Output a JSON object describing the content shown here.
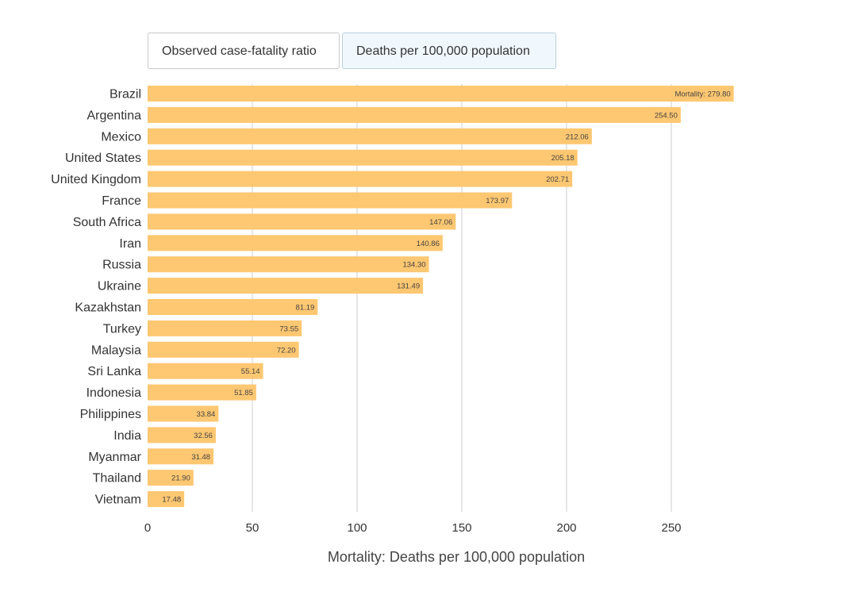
{
  "tabs": [
    {
      "label": "Observed case-fatality ratio",
      "active": false
    },
    {
      "label": "Deaths per 100,000 population",
      "active": true
    }
  ],
  "chart_data": {
    "type": "bar",
    "orientation": "horizontal",
    "categories": [
      "Brazil",
      "Argentina",
      "Mexico",
      "United States",
      "United Kingdom",
      "France",
      "South Africa",
      "Iran",
      "Russia",
      "Ukraine",
      "Kazakhstan",
      "Turkey",
      "Malaysia",
      "Sri Lanka",
      "Indonesia",
      "Philippines",
      "India",
      "Myanmar",
      "Thailand",
      "Vietnam"
    ],
    "values": [
      279.8,
      254.5,
      212.06,
      205.18,
      202.71,
      173.97,
      147.06,
      140.86,
      134.3,
      131.49,
      81.19,
      73.55,
      72.2,
      55.14,
      51.85,
      33.84,
      32.56,
      31.48,
      21.9,
      17.48
    ],
    "data_labels": [
      "Mortality: 279.80",
      "254.50",
      "212.06",
      "205.18",
      "202.71",
      "173.97",
      "147.06",
      "140.86",
      "134.30",
      "131.49",
      "81.19",
      "73.55",
      "72.20",
      "55.14",
      "51.85",
      "33.84",
      "32.56",
      "31.48",
      "21.90",
      "17.48"
    ],
    "xlabel": "Mortality: Deaths per 100,000 population",
    "xlim": [
      0,
      290
    ],
    "xticks": [
      0,
      50,
      100,
      150,
      200,
      250
    ],
    "grid": true,
    "bar_color": "#fec771",
    "grid_color": "#cccccc"
  }
}
